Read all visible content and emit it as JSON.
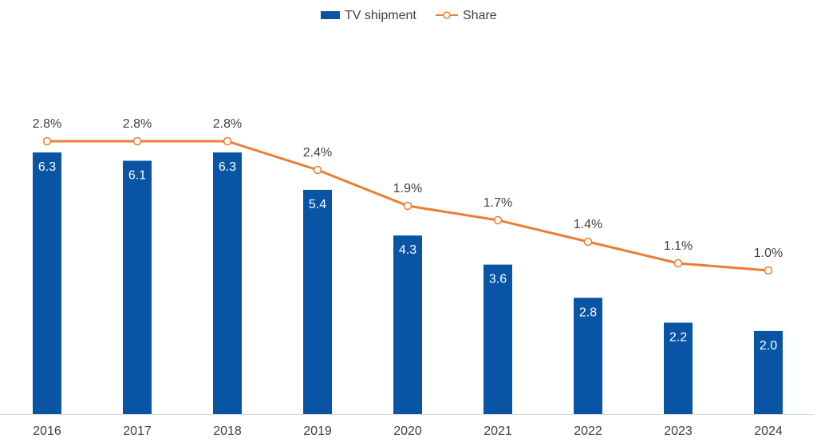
{
  "chart_data": {
    "type": "bar",
    "categories": [
      "2016",
      "2017",
      "2018",
      "2019",
      "2020",
      "2021",
      "2022",
      "2023",
      "2024"
    ],
    "series": [
      {
        "name": "TV shipment",
        "type": "bar",
        "values": [
          6.3,
          6.1,
          6.3,
          5.4,
          4.3,
          3.6,
          2.8,
          2.2,
          2.0
        ],
        "labels": [
          "6.3",
          "6.1",
          "6.3",
          "5.4",
          "4.3",
          "3.6",
          "2.8",
          "2.2",
          "2.0"
        ],
        "color": "#0954A5"
      },
      {
        "name": "Share",
        "type": "line",
        "values": [
          2.8,
          2.8,
          2.8,
          2.4,
          1.9,
          1.7,
          1.4,
          1.1,
          1.0
        ],
        "labels": [
          "2.8%",
          "2.8%",
          "2.8%",
          "2.4%",
          "1.9%",
          "1.7%",
          "1.4%",
          "1.1%",
          "1.0%"
        ],
        "color": "#ED7D31"
      }
    ],
    "y_primary_range": [
      0,
      8.3
    ],
    "y_secondary_range": [
      -1.0,
      3.8
    ],
    "legend": {
      "position": "top-center",
      "items": [
        "TV shipment",
        "Share"
      ]
    },
    "title": "",
    "xlabel": "",
    "ylabel": "",
    "grid": false
  }
}
